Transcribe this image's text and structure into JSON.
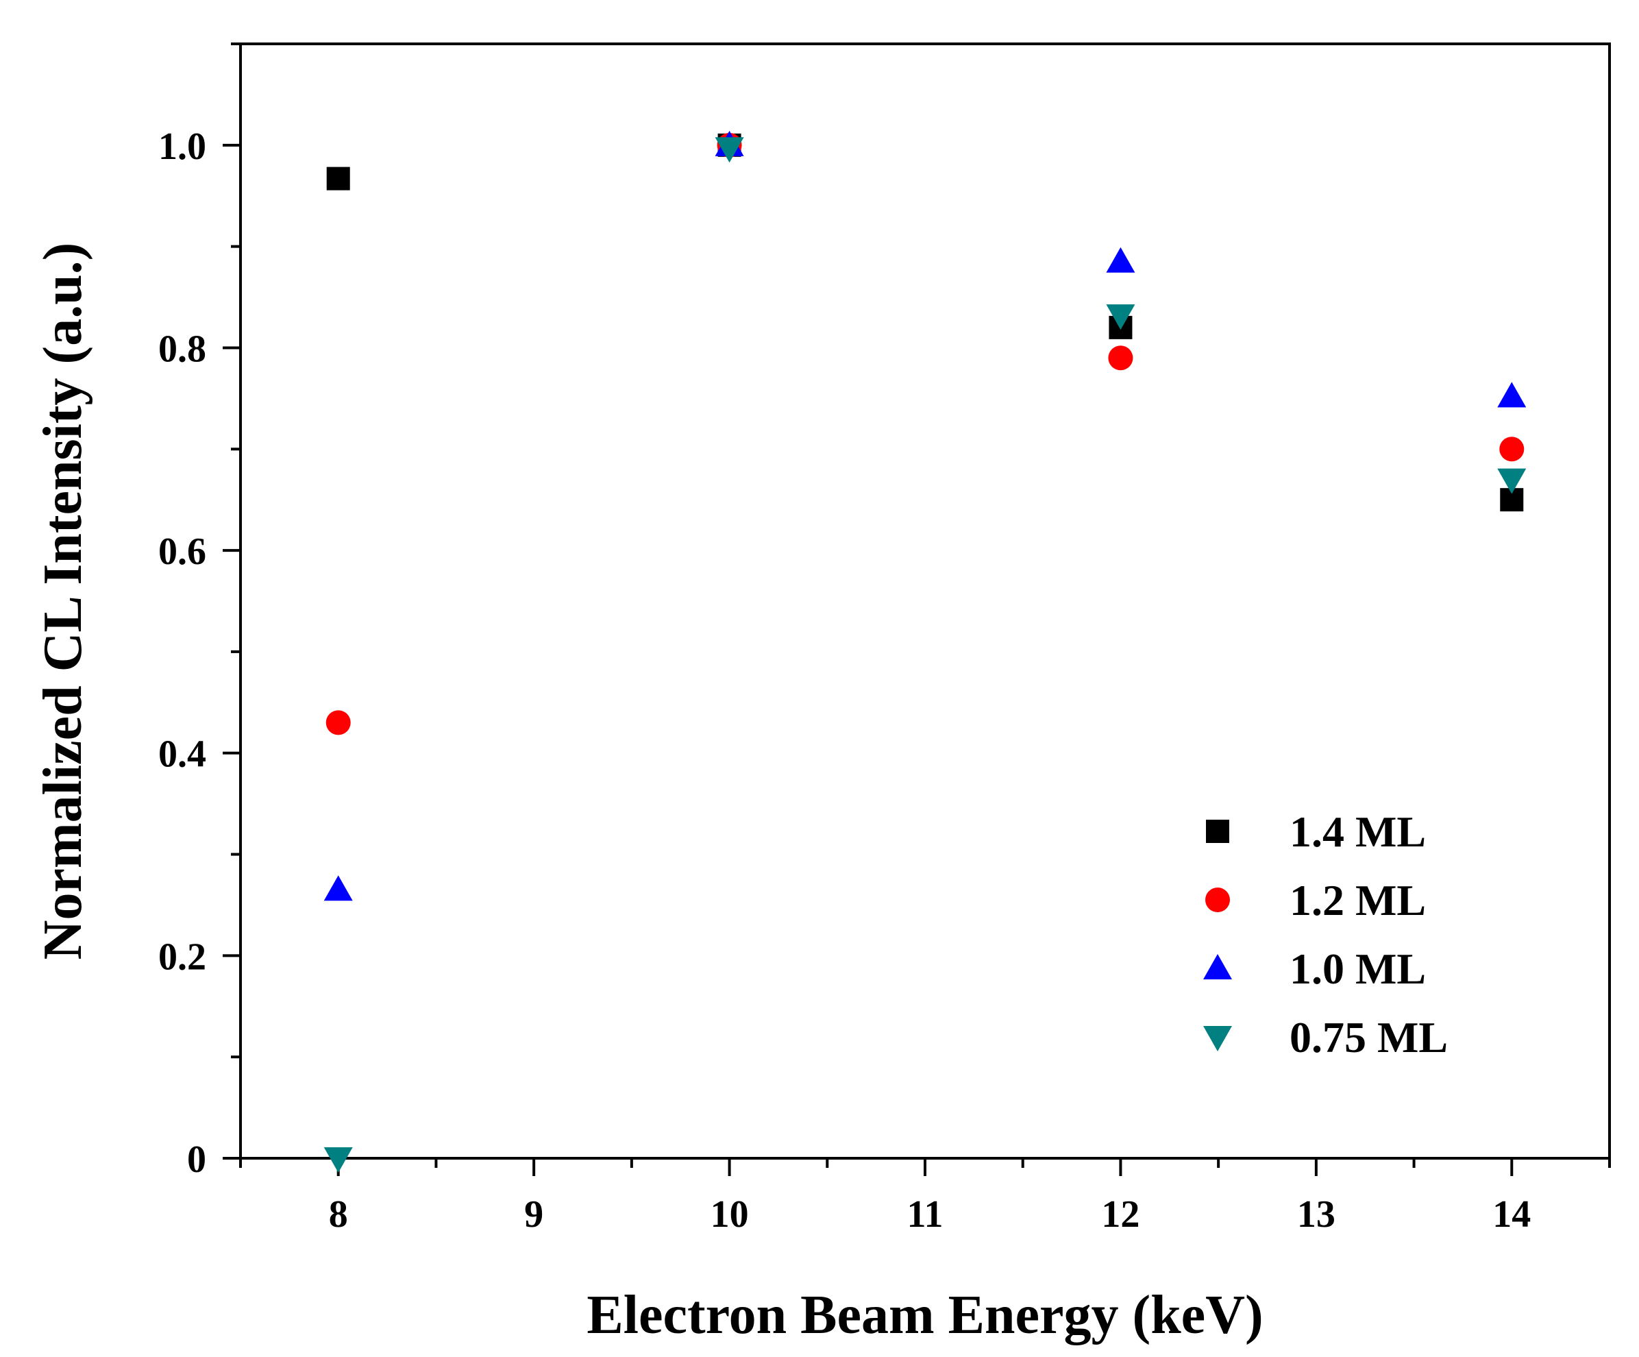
{
  "chart_data": {
    "type": "scatter",
    "title": "",
    "xlabel": "Electron Beam Energy (keV)",
    "ylabel": "Normalized CL Intensity (a.u.)",
    "xlim": [
      7.5,
      14.5
    ],
    "ylim": [
      0,
      1.1
    ],
    "xticks": [
      8,
      9,
      10,
      11,
      12,
      13,
      14
    ],
    "xtick_labels": [
      "8",
      "9",
      "10",
      "11",
      "12",
      "13",
      "14"
    ],
    "yticks": [
      0,
      0.2,
      0.4,
      0.6,
      0.8,
      1.0
    ],
    "ytick_labels": [
      "0",
      "0.2",
      "0.4",
      "0.6",
      "0.8",
      "1.0"
    ],
    "grid": false,
    "legend_position": "bottom-right",
    "series": [
      {
        "name": "1.4 ML",
        "marker": "square",
        "color": "#000000",
        "x": [
          8,
          10,
          12,
          14
        ],
        "y": [
          0.967,
          1.0,
          0.82,
          0.65
        ]
      },
      {
        "name": "1.2 ML",
        "marker": "circle",
        "color": "#ff0000",
        "x": [
          8,
          10,
          12,
          14
        ],
        "y": [
          0.43,
          1.0,
          0.79,
          0.7
        ]
      },
      {
        "name": "1.0 ML",
        "marker": "triangle-up",
        "color": "#0000ff",
        "x": [
          8,
          10,
          12,
          14
        ],
        "y": [
          0.265,
          1.0,
          0.885,
          0.752
        ]
      },
      {
        "name": "0.75 ML",
        "marker": "triangle-down",
        "color": "#008080",
        "x": [
          8,
          10,
          12,
          14
        ],
        "y": [
          0.0,
          0.997,
          0.832,
          0.67
        ]
      }
    ]
  }
}
